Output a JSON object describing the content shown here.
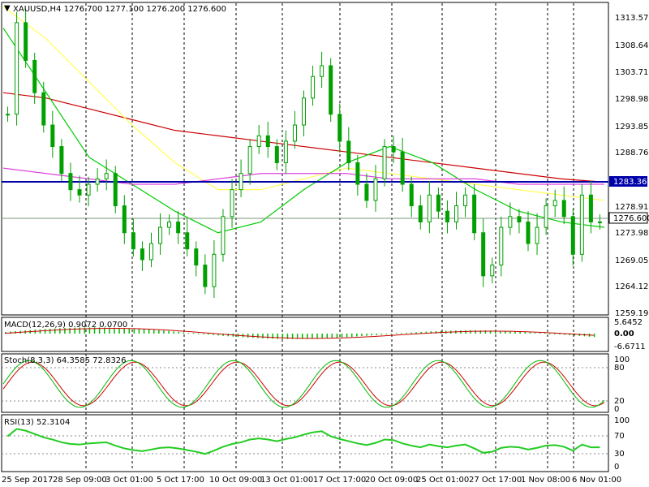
{
  "colors": {
    "up": "#00a000",
    "down": "#00a000",
    "ma_red": "#cc0000",
    "ma_yellow": "#ffff55",
    "ma_green": "#00cc00",
    "ma_magenta": "#dd44dd",
    "hline_blue": "#0000aa",
    "macd_hist": "#00bb00",
    "macd_signal": "#cc0000",
    "stoch_main": "#00bb00",
    "stoch_signal": "#cc0000",
    "rsi": "#22cc22",
    "grid_dash": "#000000"
  },
  "main_panel": {
    "header": "XAUUSD,H4  1276.700  1277.100  1276.200  1276.600",
    "price_ticks": [
      "1313.570",
      "1308.640",
      "1303.710",
      "1298.980",
      "1293.850",
      "1288.765",
      "1283.363",
      "1278.915",
      "1276.600",
      "1273.985",
      "1269.055",
      "1264.125",
      "1259.195"
    ]
  },
  "macd_panel": {
    "label": "MACD(12,26,9) 0.9072 0.0700",
    "ticks": [
      "5.6452",
      "0.00",
      "-6.6711"
    ]
  },
  "stoch_panel": {
    "label": "Stoch(8,3,3) 64.3585 72.8326",
    "ticks": [
      "100",
      "80",
      "20",
      "0"
    ]
  },
  "rsi_panel": {
    "label": "RSI(13) 52.3104",
    "ticks": [
      "100",
      "70",
      "30",
      "0"
    ]
  },
  "x_axis": {
    "labels": [
      "25 Sep 2017",
      "28 Sep 09:00",
      "3 Oct 01:00",
      "5 Oct 17:00",
      "10 Oct 09:00",
      "13 Oct 01:00",
      "17 Oct 17:00",
      "20 Oct 09:00",
      "25 Oct 01:00",
      "27 Oct 17:00",
      "1 Nov 08:00",
      "6 Nov 01:00"
    ]
  },
  "chart_data": {
    "type": "line",
    "symbol": "XAUUSD",
    "timeframe": "H4",
    "x_labels": [
      "25 Sep 2017",
      "28 Sep 09:00",
      "3 Oct 01:00",
      "5 Oct 17:00",
      "10 Oct 09:00",
      "13 Oct 01:00",
      "17 Oct 17:00",
      "20 Oct 09:00",
      "25 Oct 01:00",
      "27 Oct 17:00",
      "1 Nov 08:00",
      "6 Nov 01:00"
    ],
    "ylim": [
      1259.195,
      1316.0
    ],
    "close_approx": [
      1296,
      1313,
      1306,
      1300,
      1294,
      1290,
      1285,
      1282,
      1281,
      1283,
      1284,
      1285,
      1279,
      1274,
      1271,
      1269,
      1272,
      1275,
      1276,
      1274,
      1271,
      1268,
      1264,
      1270,
      1277,
      1282,
      1285,
      1290,
      1292,
      1290,
      1287,
      1291,
      1294,
      1299,
      1303,
      1305,
      1296,
      1291,
      1287,
      1283,
      1280,
      1284,
      1290,
      1289,
      1283,
      1279,
      1276,
      1281,
      1278,
      1276,
      1279,
      1281,
      1274,
      1266,
      1268,
      1275,
      1277,
      1276,
      1272,
      1275,
      1279,
      1280,
      1277,
      1270,
      1281,
      1276,
      1276
    ],
    "horizontal_level": 1283.363,
    "current_price": 1276.6,
    "series": [
      {
        "values": [
          1300,
          1299,
          1297,
          1295,
          1293,
          1292,
          1291,
          1290,
          1289,
          1288,
          1287,
          1286,
          1285,
          1284,
          1283.4
        ]
      },
      {
        "values": [
          1316,
          1310,
          1302,
          1294,
          1287,
          1282,
          1282,
          1284,
          1286,
          1285,
          1284,
          1283,
          1282,
          1281,
          1280
        ]
      },
      {
        "values": [
          1312,
          1300,
          1288,
          1283,
          1278,
          1274,
          1276,
          1282,
          1287,
          1290,
          1287,
          1282,
          1278,
          1276,
          1275
        ]
      },
      {
        "values": [
          1286,
          1285,
          1284,
          1283,
          1283,
          1284,
          1285,
          1285,
          1285,
          1284,
          1284,
          1284,
          1283,
          1283,
          1283
        ]
      }
    ]
  }
}
